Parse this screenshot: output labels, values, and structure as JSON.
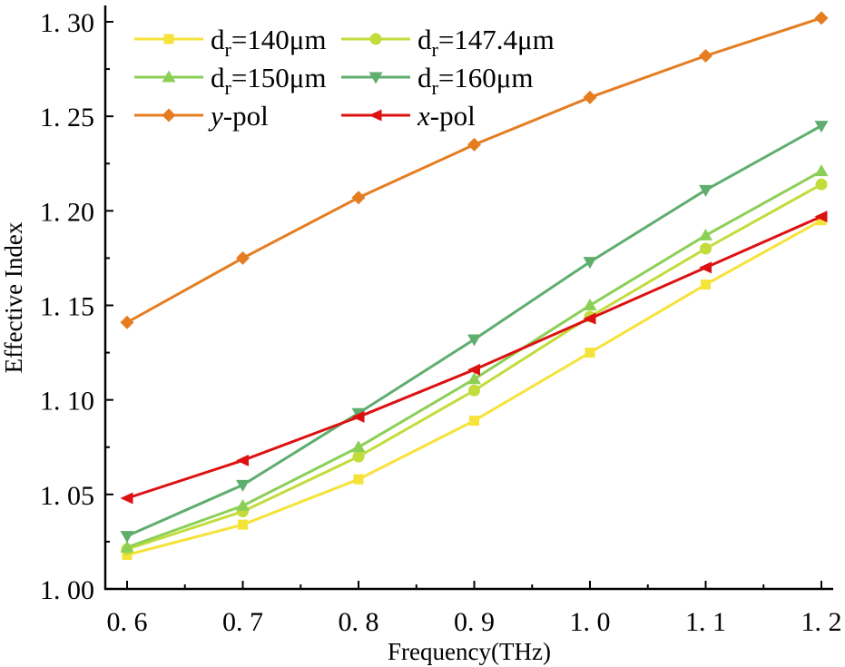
{
  "chart_data": {
    "type": "line",
    "title": "",
    "xlabel": "Frequency(THz)",
    "ylabel": "Effective Index",
    "xlim": [
      0.55,
      1.205
    ],
    "ylim": [
      1.0,
      1.3
    ],
    "xticks": [
      0.6,
      0.7,
      0.8,
      0.9,
      1.0,
      1.1,
      1.2
    ],
    "xtick_labels": [
      "0. 6",
      "0. 7",
      "0. 8",
      "0. 9",
      "1. 0",
      "1. 1",
      "1. 2"
    ],
    "yticks": [
      1.0,
      1.05,
      1.1,
      1.15,
      1.2,
      1.25,
      1.3
    ],
    "ytick_labels": [
      "1. 00",
      "1. 05",
      "1. 10",
      "1. 15",
      "1. 20",
      "1. 25",
      "1. 30"
    ],
    "grid": false,
    "legend_position": "top-left",
    "x": [
      0.6,
      0.7,
      0.8,
      0.9,
      1.0,
      1.1,
      1.2
    ],
    "series": [
      {
        "name": "dr=140μm",
        "label_main": "d",
        "label_sub": "r",
        "label_rest": "=140μm",
        "color": "#f5e33a",
        "marker": "square",
        "values": [
          1.018,
          1.034,
          1.058,
          1.089,
          1.125,
          1.161,
          1.195
        ]
      },
      {
        "name": "dr=147.4μm",
        "label_main": "d",
        "label_sub": "r",
        "label_rest": "=147.4μm",
        "color": "#c3dc3c",
        "marker": "circle",
        "values": [
          1.021,
          1.041,
          1.07,
          1.105,
          1.144,
          1.18,
          1.214
        ]
      },
      {
        "name": "dr=150μm",
        "label_main": "d",
        "label_sub": "r",
        "label_rest": "=150μm",
        "color": "#8ccf56",
        "marker": "triangle-up",
        "values": [
          1.022,
          1.044,
          1.075,
          1.111,
          1.15,
          1.187,
          1.221
        ]
      },
      {
        "name": "dr=160μm",
        "label_main": "d",
        "label_sub": "r",
        "label_rest": "=160μm",
        "color": "#5fae6e",
        "marker": "triangle-down",
        "values": [
          1.028,
          1.055,
          1.093,
          1.132,
          1.173,
          1.211,
          1.245
        ]
      },
      {
        "name": "y-pol",
        "label_main": "y",
        "label_sub": "",
        "label_rest": "-pol",
        "italic": true,
        "color": "#e57d20",
        "marker": "diamond",
        "values": [
          1.141,
          1.175,
          1.207,
          1.235,
          1.26,
          1.282,
          1.302
        ]
      },
      {
        "name": "x-pol",
        "label_main": "x",
        "label_sub": "",
        "label_rest": "-pol",
        "italic": true,
        "color": "#dd1111",
        "marker": "triangle-left",
        "values": [
          1.048,
          1.068,
          1.091,
          1.116,
          1.143,
          1.17,
          1.197
        ]
      }
    ]
  }
}
